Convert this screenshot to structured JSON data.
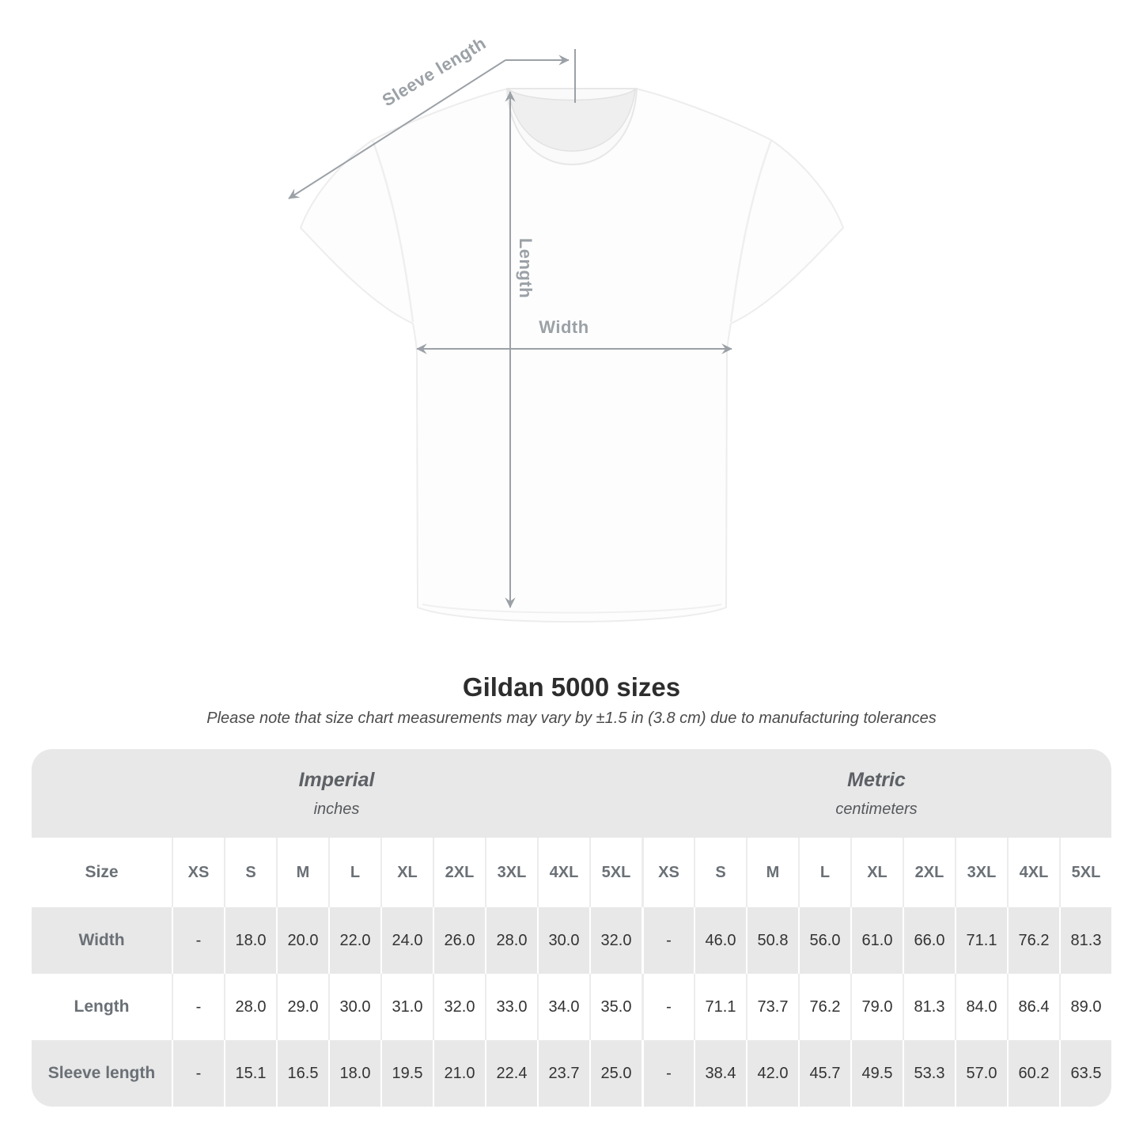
{
  "figure": {
    "sleeve_label": "Sleeve length",
    "length_label": "Length",
    "width_label": "Width",
    "annotation_color": "#9ba1a6"
  },
  "heading": {
    "title": "Gildan 5000 sizes",
    "subtitle": "Please note that size chart measurements may vary by ±1.5 in (3.8 cm) due to manufacturing tolerances"
  },
  "colors": {
    "table_band": "#e8e8e8",
    "header_text": "#6a7076",
    "value_text": "#333333",
    "annotation": "#9ba1a6"
  },
  "table": {
    "unit_headers": [
      {
        "name": "Imperial",
        "unit": "inches"
      },
      {
        "name": "Metric",
        "unit": "centimeters"
      }
    ],
    "size_col_header": "Size",
    "sizes": [
      "XS",
      "S",
      "M",
      "L",
      "XL",
      "2XL",
      "3XL",
      "4XL",
      "5XL"
    ],
    "rows": [
      {
        "label": "Width",
        "imperial": [
          "-",
          "18.0",
          "20.0",
          "22.0",
          "24.0",
          "26.0",
          "28.0",
          "30.0",
          "32.0"
        ],
        "metric": [
          "-",
          "46.0",
          "50.8",
          "56.0",
          "61.0",
          "66.0",
          "71.1",
          "76.2",
          "81.3"
        ]
      },
      {
        "label": "Length",
        "imperial": [
          "-",
          "28.0",
          "29.0",
          "30.0",
          "31.0",
          "32.0",
          "33.0",
          "34.0",
          "35.0"
        ],
        "metric": [
          "-",
          "71.1",
          "73.7",
          "76.2",
          "79.0",
          "81.3",
          "84.0",
          "86.4",
          "89.0"
        ]
      },
      {
        "label": "Sleeve length",
        "imperial": [
          "-",
          "15.1",
          "16.5",
          "18.0",
          "19.5",
          "21.0",
          "22.4",
          "23.7",
          "25.0"
        ],
        "metric": [
          "-",
          "38.4",
          "42.0",
          "45.7",
          "49.5",
          "53.3",
          "57.0",
          "60.2",
          "63.5"
        ]
      }
    ]
  },
  "chart_data": {
    "type": "table",
    "title": "Gildan 5000 sizes",
    "note": "Please note that size chart measurements may vary by ±1.5 in (3.8 cm) due to manufacturing tolerances",
    "unit_groups": [
      "Imperial (inches)",
      "Metric (centimeters)"
    ],
    "columns": [
      "XS",
      "S",
      "M",
      "L",
      "XL",
      "2XL",
      "3XL",
      "4XL",
      "5XL"
    ],
    "series": [
      {
        "name": "Width (in)",
        "values": [
          null,
          18.0,
          20.0,
          22.0,
          24.0,
          26.0,
          28.0,
          30.0,
          32.0
        ]
      },
      {
        "name": "Length (in)",
        "values": [
          null,
          28.0,
          29.0,
          30.0,
          31.0,
          32.0,
          33.0,
          34.0,
          35.0
        ]
      },
      {
        "name": "Sleeve length (in)",
        "values": [
          null,
          15.1,
          16.5,
          18.0,
          19.5,
          21.0,
          22.4,
          23.7,
          25.0
        ]
      },
      {
        "name": "Width (cm)",
        "values": [
          null,
          46.0,
          50.8,
          56.0,
          61.0,
          66.0,
          71.1,
          76.2,
          81.3
        ]
      },
      {
        "name": "Length (cm)",
        "values": [
          null,
          71.1,
          73.7,
          76.2,
          79.0,
          81.3,
          84.0,
          86.4,
          89.0
        ]
      },
      {
        "name": "Sleeve length (cm)",
        "values": [
          null,
          38.4,
          42.0,
          45.7,
          49.5,
          53.3,
          57.0,
          60.2,
          63.5
        ]
      }
    ]
  }
}
